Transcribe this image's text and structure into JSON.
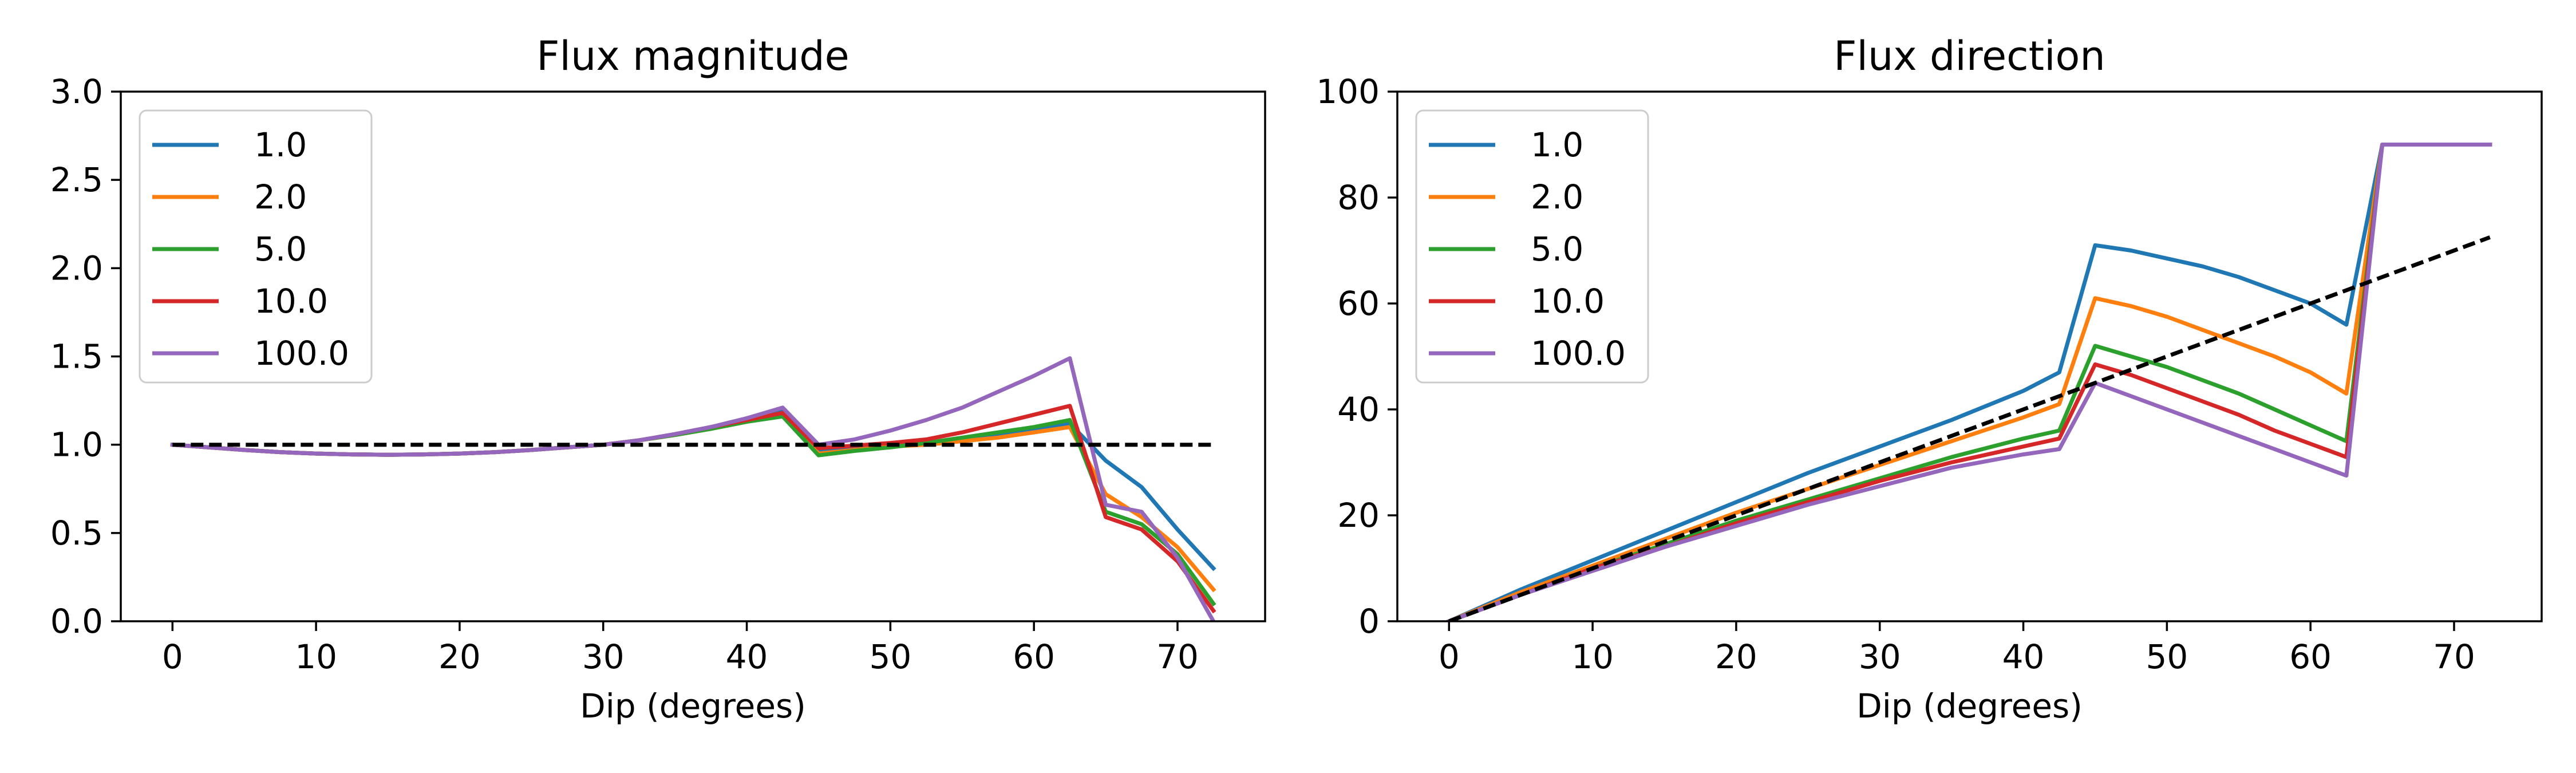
{
  "chart_data": [
    {
      "type": "line",
      "title": "Flux magnitude",
      "xlabel": "Dip (degrees)",
      "ylabel": "",
      "xlim": [
        -3.6,
        76.1
      ],
      "ylim": [
        0,
        3
      ],
      "xticks": [
        "0",
        "10",
        "20",
        "30",
        "40",
        "50",
        "60",
        "70"
      ],
      "yticks": [
        "0.0",
        "0.5",
        "1.0",
        "1.5",
        "2.0",
        "2.5",
        "3.0"
      ],
      "legend_position": "upper-left",
      "x": [
        0,
        2.5,
        5,
        7.5,
        10,
        12.5,
        15,
        17.5,
        20,
        22.5,
        25,
        27.5,
        30,
        32.5,
        35,
        37.5,
        40,
        42.5,
        45,
        47.5,
        50,
        52.5,
        55,
        57.5,
        60,
        62.5,
        65,
        67.5,
        70,
        72.5
      ],
      "series": [
        {
          "name": "1.0",
          "color": "#1f77b4",
          "values": [
            1.0,
            0.985,
            0.97,
            0.958,
            0.95,
            0.945,
            0.943,
            0.945,
            0.95,
            0.958,
            0.97,
            0.985,
            1.0,
            1.025,
            1.06,
            1.1,
            1.14,
            1.19,
            0.97,
            0.985,
            1.0,
            1.01,
            1.03,
            1.05,
            1.08,
            1.12,
            0.91,
            0.76,
            0.52,
            0.3
          ]
        },
        {
          "name": "2.0",
          "color": "#ff7f0e",
          "values": [
            1.0,
            0.985,
            0.97,
            0.958,
            0.95,
            0.945,
            0.943,
            0.945,
            0.95,
            0.958,
            0.97,
            0.985,
            1.0,
            1.025,
            1.055,
            1.09,
            1.13,
            1.17,
            0.95,
            0.97,
            0.99,
            1.0,
            1.02,
            1.04,
            1.07,
            1.1,
            0.72,
            0.59,
            0.42,
            0.18
          ]
        },
        {
          "name": "5.0",
          "color": "#2ca02c",
          "values": [
            1.0,
            0.985,
            0.97,
            0.958,
            0.95,
            0.945,
            0.943,
            0.945,
            0.95,
            0.958,
            0.97,
            0.985,
            1.0,
            1.025,
            1.055,
            1.09,
            1.13,
            1.16,
            0.94,
            0.965,
            0.985,
            1.01,
            1.04,
            1.07,
            1.1,
            1.14,
            0.62,
            0.55,
            0.38,
            0.1
          ]
        },
        {
          "name": "10.0",
          "color": "#d62728",
          "values": [
            1.0,
            0.985,
            0.97,
            0.958,
            0.95,
            0.945,
            0.943,
            0.945,
            0.95,
            0.958,
            0.97,
            0.985,
            1.0,
            1.025,
            1.06,
            1.1,
            1.14,
            1.18,
            0.98,
            0.995,
            1.01,
            1.03,
            1.07,
            1.12,
            1.17,
            1.22,
            0.59,
            0.52,
            0.34,
            0.06
          ]
        },
        {
          "name": "100.0",
          "color": "#9467bd",
          "values": [
            1.0,
            0.985,
            0.97,
            0.958,
            0.95,
            0.945,
            0.943,
            0.945,
            0.95,
            0.958,
            0.97,
            0.985,
            1.0,
            1.025,
            1.06,
            1.1,
            1.15,
            1.21,
            1.0,
            1.03,
            1.08,
            1.14,
            1.21,
            1.3,
            1.39,
            1.49,
            0.66,
            0.62,
            0.36,
            0.0
          ]
        }
      ],
      "reference_line": {
        "style": "dashed",
        "color": "#000000",
        "x": [
          0,
          72.5
        ],
        "y": [
          1.0,
          1.0
        ]
      }
    },
    {
      "type": "line",
      "title": "Flux direction",
      "xlabel": "Dip (degrees)",
      "ylabel": "",
      "xlim": [
        -3.6,
        76.1
      ],
      "ylim": [
        0,
        100
      ],
      "xticks": [
        "0",
        "10",
        "20",
        "30",
        "40",
        "50",
        "60",
        "70"
      ],
      "yticks": [
        "0",
        "20",
        "40",
        "60",
        "80",
        "100"
      ],
      "legend_position": "upper-left",
      "series": [
        {
          "name": "1.0",
          "color": "#1f77b4",
          "x": [
            0,
            5,
            10,
            15,
            20,
            25,
            30,
            35,
            40,
            42.5,
            45,
            47.5,
            50,
            52.5,
            55,
            57.5,
            60,
            62.5,
            65,
            67.5,
            70,
            72.5
          ],
          "values": [
            0,
            6,
            11.5,
            17,
            22.5,
            28,
            33,
            38,
            43.5,
            47,
            71,
            70,
            68.5,
            67,
            65,
            62.5,
            60,
            56,
            90,
            90,
            90,
            90
          ]
        },
        {
          "name": "2.0",
          "color": "#ff7f0e",
          "x": [
            0,
            5,
            10,
            15,
            20,
            25,
            30,
            35,
            40,
            42.5,
            45,
            47.5,
            50,
            52.5,
            55,
            57.5,
            60,
            62.5,
            65,
            67.5,
            70,
            72.5
          ],
          "values": [
            0,
            5.5,
            10.5,
            15.5,
            20.5,
            25,
            29.5,
            34,
            38.5,
            41,
            61,
            59.5,
            57.5,
            55,
            52.5,
            50,
            47,
            43,
            90,
            90,
            90,
            90
          ]
        },
        {
          "name": "5.0",
          "color": "#2ca02c",
          "x": [
            0,
            5,
            10,
            15,
            20,
            25,
            30,
            35,
            40,
            42.5,
            45,
            47.5,
            50,
            52.5,
            55,
            57.5,
            60,
            62.5,
            65,
            67.5,
            70,
            72.5
          ],
          "values": [
            0,
            5,
            10,
            14.5,
            19,
            23,
            27,
            31,
            34.5,
            36,
            52,
            50,
            48,
            45.5,
            43,
            40,
            37,
            34,
            90,
            90,
            90,
            90
          ]
        },
        {
          "name": "10.0",
          "color": "#d62728",
          "x": [
            0,
            5,
            10,
            15,
            20,
            25,
            30,
            35,
            40,
            42.5,
            45,
            47.5,
            50,
            52.5,
            55,
            57.5,
            60,
            62.5,
            65,
            67.5,
            70,
            72.5
          ],
          "values": [
            0,
            5,
            10,
            14,
            18.5,
            22.5,
            26.5,
            30,
            33,
            34.5,
            48.5,
            46.5,
            44,
            41.5,
            39,
            36,
            33.5,
            31,
            90,
            90,
            90,
            90
          ]
        },
        {
          "name": "100.0",
          "color": "#9467bd",
          "x": [
            0,
            5,
            10,
            15,
            20,
            25,
            30,
            35,
            40,
            42.5,
            45,
            47.5,
            50,
            52.5,
            55,
            57.5,
            60,
            62.5,
            65,
            67.5,
            70,
            72.5
          ],
          "values": [
            0,
            5,
            9.5,
            14,
            18,
            22,
            25.5,
            29,
            31.5,
            32.5,
            45,
            42.5,
            40,
            37.5,
            35,
            32.5,
            30,
            27.5,
            90,
            90,
            90,
            90
          ]
        }
      ],
      "reference_line": {
        "style": "dashed",
        "color": "#000000",
        "x": [
          0,
          72.5
        ],
        "y": [
          0,
          72.5
        ]
      }
    }
  ]
}
